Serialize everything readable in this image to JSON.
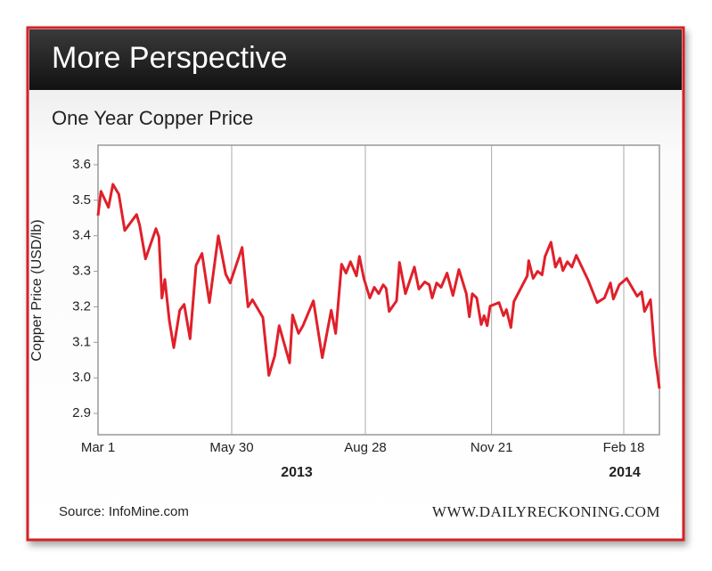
{
  "chart_data": {
    "type": "line",
    "title": "More Perspective",
    "subtitle": "One Year Copper Price",
    "y_label": "Copper Price (USD/lb)",
    "annotations": [
      "2013",
      "2014"
    ],
    "source": "Source: InfoMine.com",
    "website": "WWW.DAILYRECKONING.COM",
    "color": "#e0202a",
    "grid": true,
    "xlim": [
      "2013-03-01",
      "2014-03-14"
    ],
    "xticks": [
      {
        "value": "2013-03-01",
        "label": "Mar 1"
      },
      {
        "value": "2013-05-30",
        "label": "May 30"
      },
      {
        "value": "2013-08-28",
        "label": "Aug 28"
      },
      {
        "value": "2013-11-21",
        "label": "Nov 21"
      },
      {
        "value": "2014-02-18",
        "label": "Feb 18"
      }
    ],
    "ylim": [
      2.84,
      3.655
    ],
    "yticks": [
      2.9,
      {
        "value": 3,
        "label": "3.0"
      },
      3.1,
      3.2,
      3.3,
      3.4,
      3.5,
      3.6
    ],
    "x": [
      "2013-03-01",
      "2013-03-03",
      "2013-03-08",
      "2013-03-11",
      "2013-03-15",
      "2013-03-19",
      "2013-03-27",
      "2013-03-29",
      "2013-04-02",
      "2013-04-09",
      "2013-04-11",
      "2013-04-13",
      "2013-04-15",
      "2013-04-18",
      "2013-04-21",
      "2013-04-25",
      "2013-04-28",
      "2013-05-02",
      "2013-05-06",
      "2013-05-10",
      "2013-05-15",
      "2013-05-21",
      "2013-05-26",
      "2013-05-29",
      "2013-06-06",
      "2013-06-10",
      "2013-06-13",
      "2013-06-20",
      "2013-06-24",
      "2013-06-28",
      "2013-07-01",
      "2013-07-08",
      "2013-07-10",
      "2013-07-14",
      "2013-07-17",
      "2013-07-24",
      "2013-07-30",
      "2013-08-05",
      "2013-08-08",
      "2013-08-12",
      "2013-08-15",
      "2013-08-18",
      "2013-08-22",
      "2013-08-24",
      "2013-08-27",
      "2013-08-31",
      "2013-09-03",
      "2013-09-06",
      "2013-09-09",
      "2013-09-11",
      "2013-09-13",
      "2013-09-18",
      "2013-09-20",
      "2013-09-24",
      "2013-09-30",
      "2013-10-03",
      "2013-10-07",
      "2013-10-10",
      "2013-10-12",
      "2013-10-15",
      "2013-10-18",
      "2013-10-22",
      "2013-10-26",
      "2013-10-30",
      "2013-11-04",
      "2013-11-06",
      "2013-11-08",
      "2013-11-11",
      "2013-11-14",
      "2013-11-16",
      "2013-11-18",
      "2013-11-20",
      "2013-11-26",
      "2013-11-29",
      "2013-12-01",
      "2013-12-04",
      "2013-12-06",
      "2013-12-15",
      "2013-12-16",
      "2013-12-19",
      "2013-12-22",
      "2013-12-25",
      "2013-12-27",
      "2013-12-31",
      "2014-01-03",
      "2014-01-06",
      "2014-01-08",
      "2014-01-11",
      "2014-01-14",
      "2014-01-17",
      "2014-01-25",
      "2014-01-31",
      "2014-02-05",
      "2014-02-09",
      "2014-02-11",
      "2014-02-15",
      "2014-02-20",
      "2014-02-27",
      "2014-03-02",
      "2014-03-04",
      "2014-03-08",
      "2014-03-11",
      "2014-03-14"
    ],
    "values": [
      3.457,
      3.525,
      3.48,
      3.545,
      3.517,
      3.415,
      3.46,
      3.43,
      3.335,
      3.42,
      3.397,
      3.225,
      3.277,
      3.162,
      3.085,
      3.19,
      3.207,
      3.11,
      3.317,
      3.35,
      3.212,
      3.4,
      3.292,
      3.267,
      3.367,
      3.2,
      3.22,
      3.17,
      3.007,
      3.062,
      3.147,
      3.042,
      3.177,
      3.125,
      3.147,
      3.217,
      3.057,
      3.19,
      3.125,
      3.32,
      3.295,
      3.327,
      3.287,
      3.342,
      3.28,
      3.225,
      3.255,
      3.237,
      3.262,
      3.252,
      3.187,
      3.217,
      3.325,
      3.237,
      3.312,
      3.25,
      3.27,
      3.262,
      3.225,
      3.267,
      3.255,
      3.295,
      3.232,
      3.305,
      3.237,
      3.172,
      3.237,
      3.225,
      3.15,
      3.175,
      3.147,
      3.202,
      3.212,
      3.175,
      3.192,
      3.142,
      3.215,
      3.287,
      3.33,
      3.28,
      3.3,
      3.29,
      3.342,
      3.382,
      3.312,
      3.337,
      3.302,
      3.327,
      3.312,
      3.345,
      3.275,
      3.212,
      3.225,
      3.267,
      3.222,
      3.262,
      3.28,
      3.23,
      3.242,
      3.187,
      3.22,
      3.062,
      2.97
    ]
  }
}
